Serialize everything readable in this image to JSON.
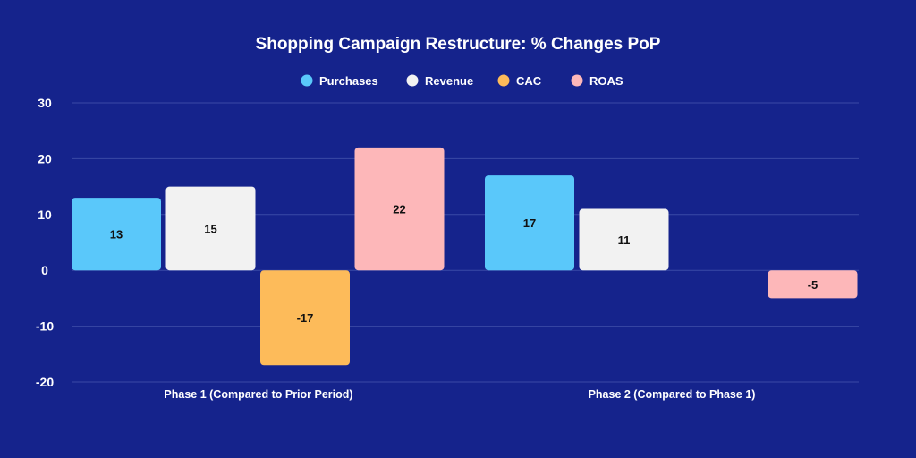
{
  "chart_data": {
    "type": "bar",
    "title": "Shopping Campaign Restructure: % Changes PoP",
    "categories": [
      "Phase 1 (Compared to Prior Period)",
      "Phase 2 (Compared to Phase 1)"
    ],
    "series": [
      {
        "name": "Purchases",
        "color": "#5ac8fa",
        "values": [
          13,
          17
        ]
      },
      {
        "name": "Revenue",
        "color": "#f2f2f2",
        "values": [
          15,
          11
        ]
      },
      {
        "name": "CAC",
        "color": "#fdbb5a",
        "values": [
          -17,
          null
        ]
      },
      {
        "name": "ROAS",
        "color": "#fdb7b9",
        "values": [
          22,
          -5
        ]
      }
    ],
    "ylim": [
      -20,
      30
    ],
    "yticks": [
      30,
      20,
      10,
      0,
      -10,
      -20
    ],
    "xlabel": "",
    "ylabel": "",
    "legend_position": "top-center",
    "grid": true
  },
  "colors": {
    "background": "#15238c",
    "text": "#ffffff",
    "grid": "#3a4aa6",
    "data_label": "#111111"
  }
}
